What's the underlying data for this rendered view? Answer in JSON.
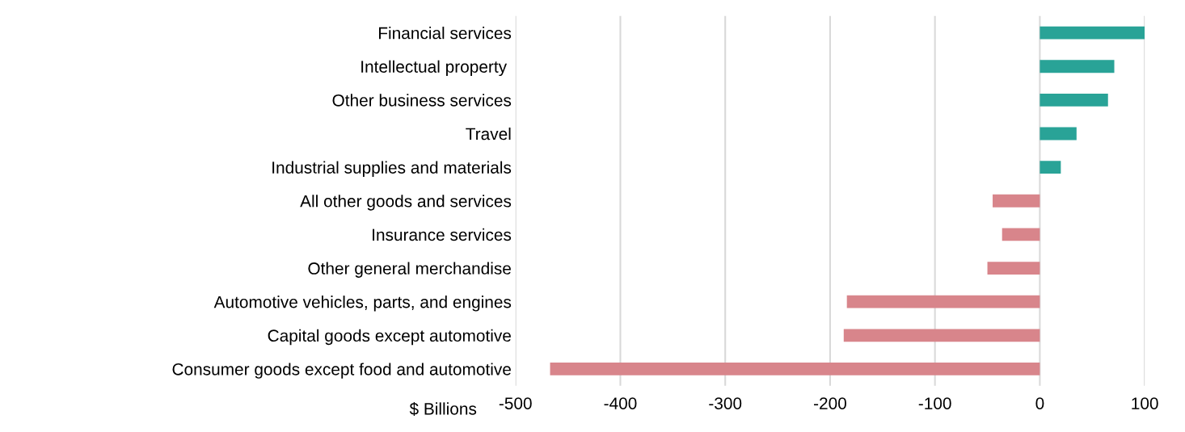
{
  "chart_data": {
    "type": "bar",
    "orientation": "horizontal",
    "xlabel": "$ Billions",
    "categories": [
      "Financial services",
      "Intellectual property ",
      "Other business services",
      "Travel",
      "Industrial supplies and materials",
      "All other goods and services",
      "Insurance services",
      "Other general merchandise",
      "Automotive vehicles, parts, and engines",
      "Capital goods except automotive",
      "Consumer goods except food and automotive"
    ],
    "values": [
      100,
      71,
      65,
      35,
      20,
      -45,
      -36,
      -50,
      -184,
      -187,
      -467
    ],
    "colors": [
      "#29a397",
      "#29a397",
      "#29a397",
      "#29a397",
      "#29a397",
      "#d8858b",
      "#d8858b",
      "#d8858b",
      "#d8858b",
      "#d8858b",
      "#d8858b"
    ],
    "xlim": [
      -500,
      100
    ],
    "xticks": [
      -500,
      -400,
      -300,
      -200,
      -100,
      0,
      100
    ],
    "grid": "x",
    "legend": false
  }
}
